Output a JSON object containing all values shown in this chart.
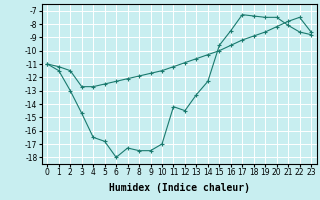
{
  "line1_x": [
    0,
    1,
    2,
    3,
    4,
    5,
    6,
    7,
    8,
    9,
    10,
    11,
    12,
    13,
    14,
    15,
    16,
    17,
    18,
    19,
    20,
    21,
    22,
    23
  ],
  "line1_y": [
    -11.0,
    -11.2,
    -11.5,
    -12.7,
    -12.7,
    -12.5,
    -12.3,
    -12.1,
    -11.9,
    -11.7,
    -11.5,
    -11.2,
    -10.9,
    -10.6,
    -10.3,
    -10.0,
    -9.6,
    -9.2,
    -8.9,
    -8.6,
    -8.2,
    -7.8,
    -7.5,
    -8.6
  ],
  "line2_x": [
    0,
    1,
    2,
    3,
    4,
    5,
    6,
    7,
    8,
    9,
    10,
    11,
    12,
    13,
    14,
    15,
    16,
    17,
    18,
    19,
    20,
    21,
    22,
    23
  ],
  "line2_y": [
    -11.0,
    -11.5,
    -13.0,
    -14.7,
    -16.5,
    -16.8,
    -18.0,
    -17.3,
    -17.5,
    -17.5,
    -17.0,
    -14.2,
    -14.5,
    -13.3,
    -12.3,
    -9.6,
    -8.5,
    -7.3,
    -7.4,
    -7.5,
    -7.5,
    -8.1,
    -8.6,
    -8.8
  ],
  "color": "#1a7a6e",
  "bg_color": "#c8eef0",
  "grid_color": "#ffffff",
  "xlabel": "Humidex (Indice chaleur)",
  "xlim": [
    -0.5,
    23.5
  ],
  "ylim": [
    -18.5,
    -6.5
  ],
  "yticks": [
    -7,
    -8,
    -9,
    -10,
    -11,
    -12,
    -13,
    -14,
    -15,
    -16,
    -17,
    -18
  ],
  "xticks": [
    0,
    1,
    2,
    3,
    4,
    5,
    6,
    7,
    8,
    9,
    10,
    11,
    12,
    13,
    14,
    15,
    16,
    17,
    18,
    19,
    20,
    21,
    22,
    23
  ],
  "marker": "+",
  "markersize": 3,
  "linewidth": 0.8,
  "xlabel_fontsize": 7,
  "tick_fontsize": 5.5
}
